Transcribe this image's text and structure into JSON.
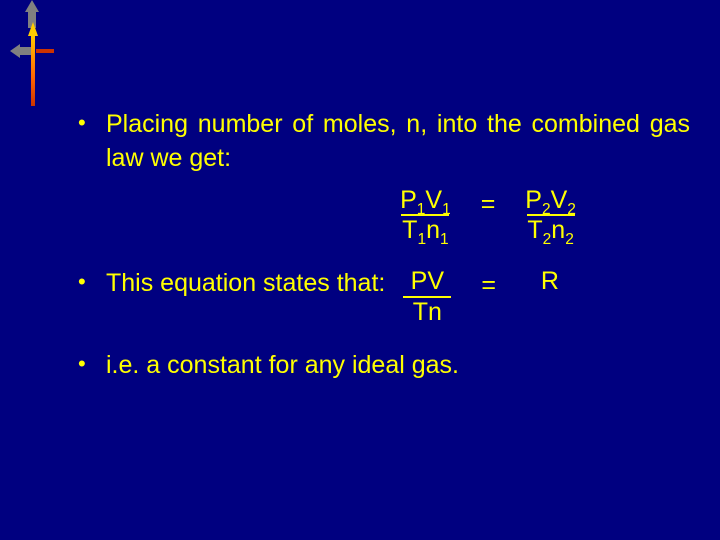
{
  "colors": {
    "background": "#000080",
    "text": "#ffff00",
    "underline": "#ffff00",
    "arrow_gray": "#808080",
    "gradient_top": "#ffcc00",
    "gradient_mid": "#ff6600",
    "gradient_bot": "#cc3300"
  },
  "typography": {
    "font_family": "Comic Sans MS",
    "body_fontsize_pt": 19,
    "sub_scale": 0.62
  },
  "bullets": [
    {
      "text_a": "Placing number of moles, n, into the",
      "text_b": "combined gas law we get:",
      "equation": {
        "left": {
          "num": "P1V1",
          "den": "T1n1",
          "bar": true
        },
        "center": "=",
        "right": {
          "num": "P2V2",
          "den": "T2n2",
          "bar": true
        }
      }
    },
    {
      "lead": "This equation states that:",
      "equation": {
        "left": {
          "num": "PV",
          "den": "Tn",
          "bar": true
        },
        "center": "=",
        "right": {
          "num": "R",
          "den": "",
          "bar": false
        }
      }
    },
    {
      "text": "i.e. a constant for any ideal gas."
    }
  ],
  "equation_parts": {
    "p": "P",
    "v": "V",
    "t": "T",
    "n": "n",
    "r": "R",
    "s1": "1",
    "s2": "2",
    "eq": "="
  }
}
